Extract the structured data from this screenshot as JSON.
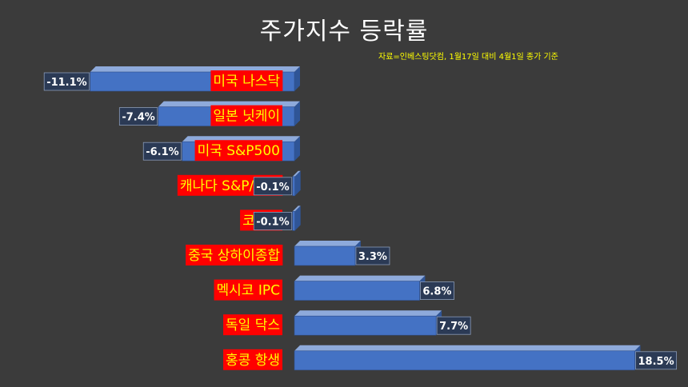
{
  "chart_data": {
    "type": "bar",
    "orientation": "horizontal",
    "title": "주가지수 등락률",
    "source_note": "자료=인베스팅닷컴, 1월17일 대비 4월1일 종가 기준",
    "categories": [
      "미국 나스닥",
      "일본 닛케이",
      "미국 S&P500",
      "캐나다 S&P/TSX",
      "코스피",
      "중국 상하이종합",
      "멕시코 IPC",
      "독일 닥스",
      "홍콩 항생"
    ],
    "values": [
      -11.1,
      -7.4,
      -6.1,
      -0.1,
      -0.1,
      3.3,
      6.8,
      7.7,
      18.5
    ],
    "value_labels": [
      "-11.1%",
      "-7.4%",
      "-6.1%",
      "-0.1%",
      "-0.1%",
      "3.3%",
      "6.8%",
      "7.7%",
      "18.5%"
    ],
    "xlim": [
      -13.5,
      19.5
    ],
    "grid": false,
    "legend": "none"
  },
  "colors": {
    "background": "#3b3b3b",
    "bar_front": "#4472c4",
    "bar_top": "#8eaadb",
    "bar_side": "#2f5597",
    "label_bg": "#ff0000",
    "label_text": "#ffff00",
    "value_bg": "#2b3a55",
    "value_text": "#ffffff"
  }
}
